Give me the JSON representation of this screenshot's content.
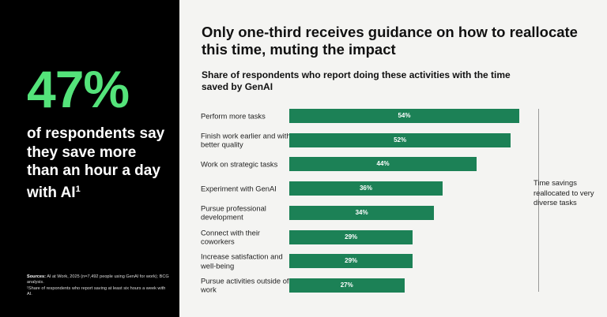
{
  "left_panel": {
    "big_stat": "47%",
    "stat_text": "of respondents say they save more than an hour a day with AI",
    "stat_footnote_mark": "1",
    "sources_label": "Sources:",
    "sources_text": "AI at Work, 2025 (n=7,492 people using GenAI for work); BCG analysis.",
    "footnote": "¹Share of respondents who report saving at least six hours a week with AI."
  },
  "colors": {
    "panel": "#000000",
    "stat": "#54e37a",
    "bar": "#1c8156"
  },
  "chart_data": {
    "type": "bar",
    "orientation": "horizontal",
    "title": "Only one-third receives guidance on how to reallocate this time, muting the impact",
    "subtitle": "Share of respondents who report doing these activities with the time saved by GenAI",
    "categories": [
      "Perform more tasks",
      "Finish work earlier and with better quality",
      "Work on strategic tasks",
      "Experiment with GenAI",
      "Pursue professional development",
      "Connect with their coworkers",
      "Increase satisfaction and well-being",
      "Pursue activities outside of work"
    ],
    "values": [
      54,
      52,
      44,
      36,
      34,
      29,
      29,
      27
    ],
    "value_labels": [
      "54%",
      "52%",
      "44%",
      "36%",
      "34%",
      "29%",
      "29%",
      "27%"
    ],
    "xlim": [
      0,
      54
    ],
    "annotation": "Time savings reallocated to very diverse tasks",
    "grid": false,
    "legend": "none"
  }
}
